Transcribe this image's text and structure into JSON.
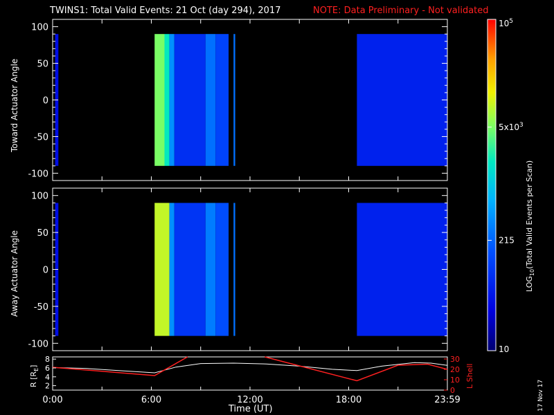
{
  "header": {
    "title": "TWINS1: Total Valid Events: 21 Oct (day 294), 2017",
    "note": "NOTE: Data Preliminary - Not validated"
  },
  "stamp": "17 Nov 17",
  "colors": {
    "note_red": "#ff2020",
    "background": "#000000",
    "axes": "#ffffff"
  },
  "chart_data": [
    {
      "type": "heatmap",
      "panel": "toward",
      "ylabel": "Toward Actuator Angle",
      "ylim": [
        -110,
        110
      ],
      "yticks": [
        100,
        50,
        0,
        -50,
        -100
      ],
      "angle_range": [
        -90,
        90
      ],
      "xlim_hours": [
        0,
        24
      ],
      "data_intervals_hours": [
        [
          0.15,
          0.35
        ],
        [
          6.2,
          10.7
        ],
        [
          11.0,
          11.1
        ],
        [
          18.5,
          24.0
        ]
      ],
      "columns": [
        {
          "t0": 6.2,
          "t1": 6.8,
          "value": 5000
        },
        {
          "t0": 6.8,
          "t1": 7.1,
          "value": 2000
        },
        {
          "t0": 7.1,
          "t1": 7.4,
          "value": 400
        },
        {
          "t0": 7.4,
          "t1": 9.3,
          "value": 80
        },
        {
          "t0": 9.3,
          "t1": 9.9,
          "value": 250
        },
        {
          "t0": 9.9,
          "t1": 10.7,
          "value": 120
        },
        {
          "t0": 18.5,
          "t1": 24.0,
          "value": 60
        }
      ]
    },
    {
      "type": "heatmap",
      "panel": "away",
      "ylabel": "Away Actuator Angle",
      "ylim": [
        -110,
        110
      ],
      "yticks": [
        100,
        50,
        0,
        -50,
        -100
      ],
      "angle_range": [
        -90,
        90
      ],
      "xlim_hours": [
        0,
        24
      ],
      "data_intervals_hours": [
        [
          0.15,
          0.35
        ],
        [
          6.2,
          10.7
        ],
        [
          11.0,
          11.1
        ],
        [
          18.5,
          24.0
        ]
      ],
      "columns": [
        {
          "t0": 6.2,
          "t1": 7.1,
          "value": 9000
        },
        {
          "t0": 7.1,
          "t1": 7.4,
          "value": 400
        },
        {
          "t0": 7.4,
          "t1": 9.3,
          "value": 90
        },
        {
          "t0": 9.3,
          "t1": 9.9,
          "value": 300
        },
        {
          "t0": 9.9,
          "t1": 10.7,
          "value": 150
        },
        {
          "t0": 18.5,
          "t1": 24.0,
          "value": 60
        }
      ]
    },
    {
      "type": "line",
      "panel": "orbit",
      "xlabel": "Time (UT)",
      "xticks": [
        "0:00",
        "6:00",
        "12:00",
        "18:00",
        "23:59"
      ],
      "ylabel_left": "R [R",
      "ylabel_left_sub": "E",
      "ylabel_left_close": "]",
      "yticks_left": [
        2,
        4,
        6,
        8
      ],
      "ylim_left": [
        1,
        8.5
      ],
      "ylabel_right": "L Shell",
      "yticks_right": [
        0,
        10,
        20,
        30
      ],
      "ylim_right": [
        0,
        32
      ],
      "series": [
        {
          "axis": "left",
          "x": [
            0,
            2,
            4,
            6.2,
            7.5,
            9.0,
            11.0,
            13.0,
            15.0,
            17.0,
            18.5,
            20.0,
            22.0,
            23.0,
            24.0
          ],
          "y": [
            6.1,
            5.9,
            5.4,
            4.9,
            6.2,
            7.0,
            7.1,
            6.9,
            6.4,
            5.7,
            5.4,
            6.4,
            7.2,
            7.1,
            6.6
          ]
        },
        {
          "axis": "right",
          "color": "#ff2020",
          "x": [
            0,
            6.2,
            8.2,
            null,
            12.9,
            18.5,
            21.0,
            22.8,
            24.0
          ],
          "y": [
            22,
            14,
            33,
            null,
            33,
            9,
            24,
            25,
            20
          ]
        }
      ]
    },
    {
      "type": "colorbar",
      "label_prefix": "LOG",
      "label_sub": "10",
      "label_suffix": "(Total Valid Events per Scan)",
      "tick_labels": [
        {
          "value": 100000,
          "base": "10",
          "exp": "5"
        },
        {
          "value": 5000,
          "base": "5x10",
          "exp": "3"
        },
        {
          "value": 215,
          "base": "215",
          "exp": ""
        },
        {
          "value": 10,
          "base": "10",
          "exp": ""
        }
      ],
      "range": [
        10,
        100000
      ],
      "scale": "log"
    }
  ]
}
